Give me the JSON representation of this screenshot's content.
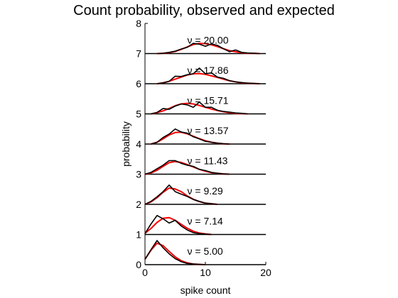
{
  "chart_data": {
    "type": "line",
    "title": "Count probability, observed and expected",
    "xlabel": "spike count",
    "ylabel": "probability",
    "xlim": [
      0,
      20
    ],
    "ylim": [
      0,
      8
    ],
    "x_ticks": [
      "0",
      "10",
      "20"
    ],
    "y_ticks": [
      "0",
      "1",
      "2",
      "3",
      "4",
      "5",
      "6",
      "7",
      "8"
    ],
    "grid": false,
    "legend": "none",
    "colors": {
      "observed": "#000000",
      "expected": "#ff0000",
      "baseline": "#000000"
    },
    "panels": [
      {
        "label": "ν = 5.00",
        "offset": 0,
        "observed": [
          [
            0,
            0.18
          ],
          [
            1,
            0.5
          ],
          [
            2,
            0.8
          ],
          [
            3,
            0.56
          ],
          [
            4,
            0.36
          ],
          [
            5,
            0.2
          ],
          [
            6,
            0.1
          ],
          [
            7,
            0.04
          ],
          [
            8,
            0.02
          ],
          [
            9,
            0.01
          ],
          [
            10,
            0
          ]
        ],
        "expected": [
          [
            0,
            0.18
          ],
          [
            1,
            0.48
          ],
          [
            2,
            0.71
          ],
          [
            3,
            0.63
          ],
          [
            4,
            0.44
          ],
          [
            5,
            0.26
          ],
          [
            6,
            0.13
          ],
          [
            7,
            0.06
          ],
          [
            8,
            0.02
          ],
          [
            9,
            0.01
          ],
          [
            10,
            0
          ]
        ]
      },
      {
        "label": "ν = 7.14",
        "offset": 1,
        "observed": [
          [
            0,
            0.03
          ],
          [
            1,
            0.35
          ],
          [
            2,
            0.63
          ],
          [
            3,
            0.52
          ],
          [
            4,
            0.38
          ],
          [
            5,
            0.47
          ],
          [
            6,
            0.28
          ],
          [
            7,
            0.15
          ],
          [
            8,
            0.06
          ],
          [
            9,
            0.03
          ],
          [
            10,
            0.01
          ],
          [
            11,
            0
          ]
        ],
        "expected": [
          [
            0,
            0.04
          ],
          [
            1,
            0.2
          ],
          [
            2,
            0.4
          ],
          [
            3,
            0.54
          ],
          [
            4,
            0.56
          ],
          [
            5,
            0.47
          ],
          [
            6,
            0.34
          ],
          [
            7,
            0.21
          ],
          [
            8,
            0.11
          ],
          [
            9,
            0.05
          ],
          [
            10,
            0.02
          ],
          [
            11,
            0
          ]
        ]
      },
      {
        "label": "ν = 9.29",
        "offset": 2,
        "observed": [
          [
            0,
            0
          ],
          [
            1,
            0.1
          ],
          [
            2,
            0.25
          ],
          [
            3,
            0.42
          ],
          [
            4,
            0.64
          ],
          [
            5,
            0.42
          ],
          [
            6,
            0.34
          ],
          [
            7,
            0.26
          ],
          [
            8,
            0.16
          ],
          [
            9,
            0.1
          ],
          [
            10,
            0.04
          ],
          [
            11,
            0.02
          ],
          [
            12,
            0
          ]
        ],
        "expected": [
          [
            0,
            0
          ],
          [
            1,
            0.08
          ],
          [
            2,
            0.22
          ],
          [
            3,
            0.4
          ],
          [
            4,
            0.54
          ],
          [
            5,
            0.51
          ],
          [
            6,
            0.42
          ],
          [
            7,
            0.28
          ],
          [
            8,
            0.17
          ],
          [
            9,
            0.09
          ],
          [
            10,
            0.04
          ],
          [
            11,
            0.02
          ],
          [
            12,
            0
          ]
        ]
      },
      {
        "label": "ν = 11.43",
        "offset": 3,
        "observed": [
          [
            0,
            0
          ],
          [
            1,
            0.06
          ],
          [
            2,
            0.18
          ],
          [
            3,
            0.3
          ],
          [
            4,
            0.45
          ],
          [
            5,
            0.45
          ],
          [
            6,
            0.36
          ],
          [
            7,
            0.3
          ],
          [
            8,
            0.26
          ],
          [
            9,
            0.16
          ],
          [
            10,
            0.12
          ],
          [
            11,
            0.06
          ],
          [
            12,
            0.03
          ],
          [
            13,
            0.01
          ],
          [
            14,
            0
          ]
        ],
        "expected": [
          [
            0,
            0
          ],
          [
            1,
            0.04
          ],
          [
            2,
            0.13
          ],
          [
            3,
            0.26
          ],
          [
            4,
            0.38
          ],
          [
            5,
            0.42
          ],
          [
            6,
            0.39
          ],
          [
            7,
            0.32
          ],
          [
            8,
            0.24
          ],
          [
            9,
            0.16
          ],
          [
            10,
            0.1
          ],
          [
            11,
            0.05
          ],
          [
            12,
            0.03
          ],
          [
            13,
            0.01
          ],
          [
            14,
            0
          ]
        ]
      },
      {
        "label": "ν = 13.57",
        "offset": 4,
        "observed": [
          [
            1,
            0
          ],
          [
            2,
            0.06
          ],
          [
            3,
            0.22
          ],
          [
            4,
            0.33
          ],
          [
            5,
            0.5
          ],
          [
            6,
            0.4
          ],
          [
            7,
            0.36
          ],
          [
            8,
            0.24
          ],
          [
            9,
            0.17
          ],
          [
            10,
            0.09
          ],
          [
            11,
            0.06
          ],
          [
            12,
            0.03
          ],
          [
            13,
            0.01
          ],
          [
            14,
            0
          ]
        ],
        "expected": [
          [
            1,
            0
          ],
          [
            2,
            0.06
          ],
          [
            3,
            0.17
          ],
          [
            4,
            0.3
          ],
          [
            5,
            0.38
          ],
          [
            6,
            0.39
          ],
          [
            7,
            0.34
          ],
          [
            8,
            0.26
          ],
          [
            9,
            0.18
          ],
          [
            10,
            0.11
          ],
          [
            11,
            0.06
          ],
          [
            12,
            0.03
          ],
          [
            13,
            0.01
          ],
          [
            14,
            0
          ]
        ]
      },
      {
        "label": "ν = 15.71",
        "offset": 5,
        "observed": [
          [
            1,
            0
          ],
          [
            2,
            0.05
          ],
          [
            3,
            0.18
          ],
          [
            4,
            0.15
          ],
          [
            5,
            0.26
          ],
          [
            6,
            0.33
          ],
          [
            7,
            0.3
          ],
          [
            8,
            0.22
          ],
          [
            9,
            0.39
          ],
          [
            10,
            0.22
          ],
          [
            11,
            0.22
          ],
          [
            12,
            0.12
          ],
          [
            13,
            0.08
          ],
          [
            14,
            0.06
          ],
          [
            15,
            0.03
          ],
          [
            16,
            0.02
          ],
          [
            17,
            0
          ]
        ],
        "expected": [
          [
            1,
            0
          ],
          [
            2,
            0.04
          ],
          [
            3,
            0.1
          ],
          [
            4,
            0.18
          ],
          [
            5,
            0.27
          ],
          [
            6,
            0.33
          ],
          [
            7,
            0.35
          ],
          [
            8,
            0.33
          ],
          [
            9,
            0.28
          ],
          [
            10,
            0.22
          ],
          [
            11,
            0.16
          ],
          [
            12,
            0.11
          ],
          [
            13,
            0.07
          ],
          [
            14,
            0.04
          ],
          [
            15,
            0.02
          ],
          [
            16,
            0.01
          ],
          [
            17,
            0
          ]
        ]
      },
      {
        "label": "ν = 17.86",
        "offset": 6,
        "observed": [
          [
            2,
            0
          ],
          [
            3,
            0.03
          ],
          [
            4,
            0.08
          ],
          [
            5,
            0.25
          ],
          [
            6,
            0.24
          ],
          [
            7,
            0.3
          ],
          [
            8,
            0.33
          ],
          [
            9,
            0.52
          ],
          [
            10,
            0.33
          ],
          [
            11,
            0.36
          ],
          [
            12,
            0.22
          ],
          [
            13,
            0.18
          ],
          [
            14,
            0.1
          ],
          [
            15,
            0.06
          ],
          [
            16,
            0.04
          ],
          [
            17,
            0.02
          ],
          [
            18,
            0.01
          ],
          [
            19,
            0
          ]
        ],
        "expected": [
          [
            2,
            0
          ],
          [
            3,
            0.03
          ],
          [
            4,
            0.08
          ],
          [
            5,
            0.15
          ],
          [
            6,
            0.22
          ],
          [
            7,
            0.29
          ],
          [
            8,
            0.33
          ],
          [
            9,
            0.34
          ],
          [
            10,
            0.31
          ],
          [
            11,
            0.26
          ],
          [
            12,
            0.21
          ],
          [
            13,
            0.15
          ],
          [
            14,
            0.1
          ],
          [
            15,
            0.06
          ],
          [
            16,
            0.03
          ],
          [
            17,
            0.02
          ],
          [
            18,
            0.01
          ],
          [
            19,
            0
          ]
        ]
      },
      {
        "label": "ν = 20.00",
        "offset": 7,
        "observed": [
          [
            2,
            0
          ],
          [
            3,
            0.01
          ],
          [
            4,
            0.04
          ],
          [
            5,
            0.08
          ],
          [
            6,
            0.15
          ],
          [
            7,
            0.21
          ],
          [
            8,
            0.34
          ],
          [
            9,
            0.31
          ],
          [
            10,
            0.24
          ],
          [
            11,
            0.32
          ],
          [
            12,
            0.27
          ],
          [
            13,
            0.16
          ],
          [
            14,
            0.06
          ],
          [
            15,
            0.12
          ],
          [
            16,
            0.04
          ],
          [
            17,
            0.02
          ],
          [
            18,
            0.01
          ],
          [
            19,
            0
          ]
        ],
        "expected": [
          [
            2,
            0
          ],
          [
            3,
            0.01
          ],
          [
            4,
            0.03
          ],
          [
            5,
            0.07
          ],
          [
            6,
            0.14
          ],
          [
            7,
            0.22
          ],
          [
            8,
            0.3
          ],
          [
            9,
            0.34
          ],
          [
            10,
            0.33
          ],
          [
            11,
            0.29
          ],
          [
            12,
            0.23
          ],
          [
            13,
            0.16
          ],
          [
            14,
            0.1
          ],
          [
            15,
            0.06
          ],
          [
            16,
            0.03
          ],
          [
            17,
            0.01
          ],
          [
            18,
            0.01
          ],
          [
            19,
            0
          ]
        ]
      }
    ]
  }
}
